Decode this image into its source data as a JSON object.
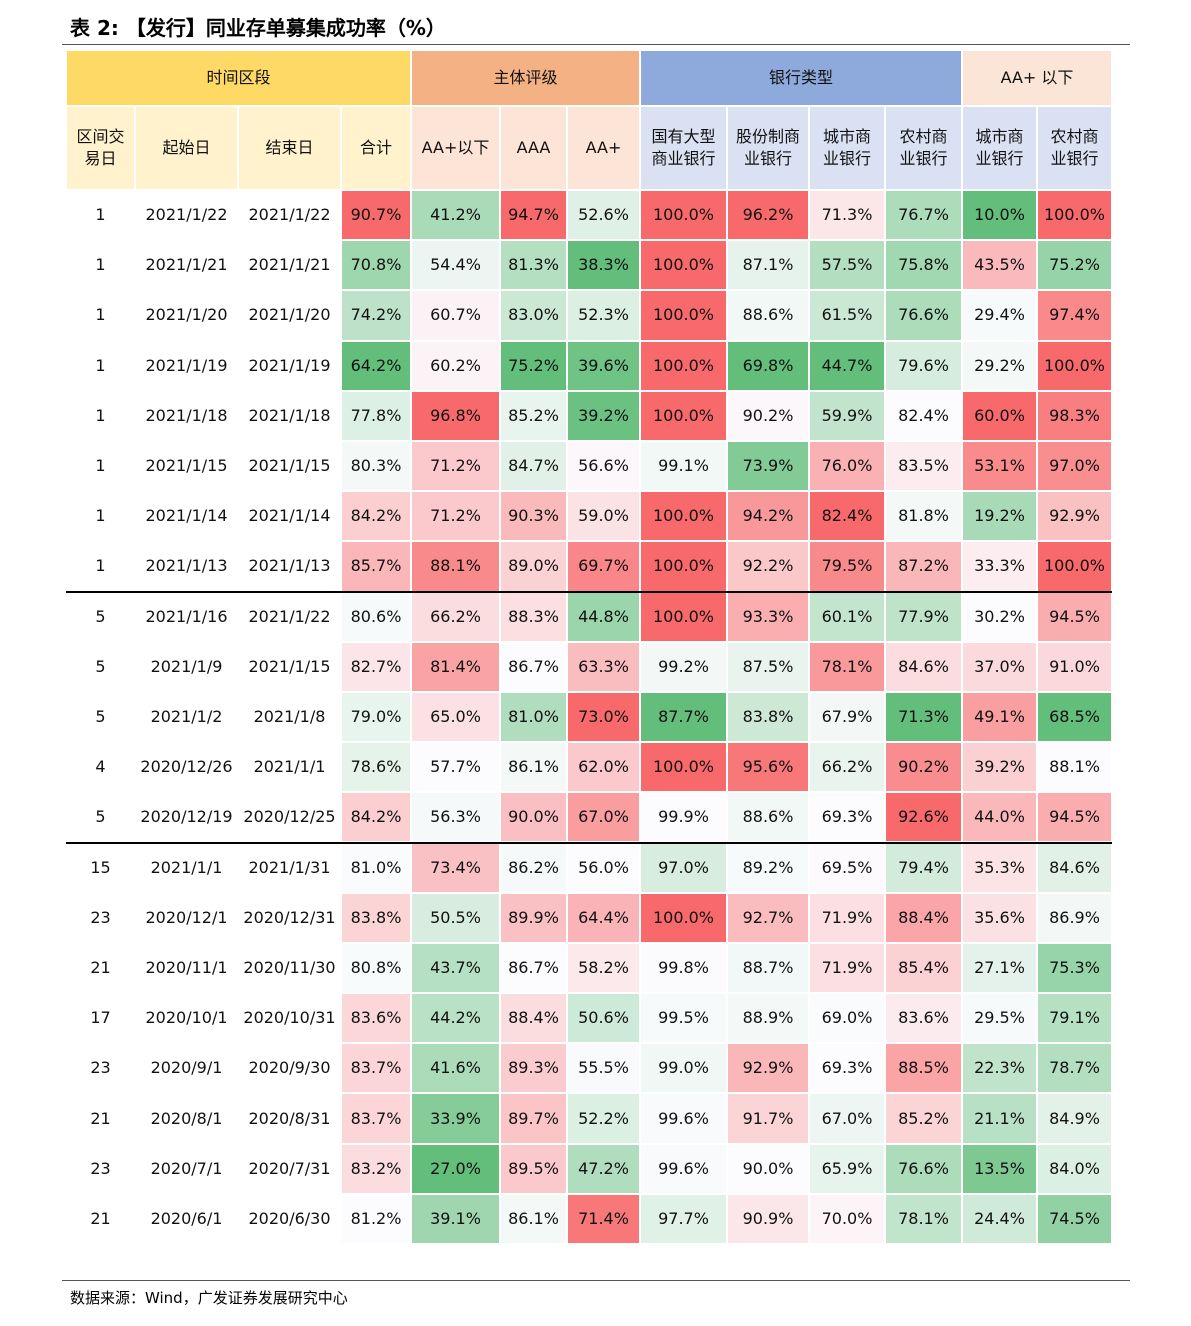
{
  "title": "表 2: 【发行】同业存单募集成功率（%）",
  "table": {
    "group_headers": [
      "时间区段",
      "主体评级",
      "银行类型",
      "AA+ 以下"
    ],
    "headers": [
      "区间交\n易日",
      "起始日",
      "结束日",
      "合计",
      "AA+以下",
      "AAA",
      "AA+",
      "国有大型\n商业银行",
      "股份制商\n业银行",
      "城市商\n业银行",
      "农村商\n业银行",
      "城市商\n业银行",
      "农村商\n业银行"
    ],
    "rows": [
      [
        "1",
        "2021/1/22",
        "2021/1/22",
        "90.7%",
        "41.2%",
        "94.7%",
        "52.6%",
        "100.0%",
        "96.2%",
        "71.3%",
        "76.7%",
        "10.0%",
        "100.0%"
      ],
      [
        "1",
        "2021/1/21",
        "2021/1/21",
        "70.8%",
        "54.4%",
        "81.3%",
        "38.3%",
        "100.0%",
        "87.1%",
        "57.5%",
        "75.8%",
        "43.5%",
        "75.2%"
      ],
      [
        "1",
        "2021/1/20",
        "2021/1/20",
        "74.2%",
        "60.7%",
        "83.0%",
        "52.3%",
        "100.0%",
        "88.6%",
        "61.5%",
        "76.6%",
        "29.4%",
        "97.4%"
      ],
      [
        "1",
        "2021/1/19",
        "2021/1/19",
        "64.2%",
        "60.2%",
        "75.2%",
        "39.6%",
        "100.0%",
        "69.8%",
        "44.7%",
        "79.6%",
        "29.2%",
        "100.0%"
      ],
      [
        "1",
        "2021/1/18",
        "2021/1/18",
        "77.8%",
        "96.8%",
        "85.2%",
        "39.2%",
        "100.0%",
        "90.2%",
        "59.9%",
        "82.4%",
        "60.0%",
        "98.3%"
      ],
      [
        "1",
        "2021/1/15",
        "2021/1/15",
        "80.3%",
        "71.2%",
        "84.7%",
        "56.6%",
        "99.1%",
        "73.9%",
        "76.0%",
        "83.5%",
        "53.1%",
        "97.0%"
      ],
      [
        "1",
        "2021/1/14",
        "2021/1/14",
        "84.2%",
        "71.2%",
        "90.3%",
        "59.0%",
        "100.0%",
        "94.2%",
        "82.4%",
        "81.8%",
        "19.2%",
        "92.9%"
      ],
      [
        "1",
        "2021/1/13",
        "2021/1/13",
        "85.7%",
        "88.1%",
        "89.0%",
        "69.7%",
        "100.0%",
        "92.2%",
        "79.5%",
        "87.2%",
        "33.3%",
        "100.0%"
      ],
      [
        "5",
        "2021/1/16",
        "2021/1/22",
        "80.6%",
        "66.2%",
        "88.3%",
        "44.8%",
        "100.0%",
        "93.3%",
        "60.1%",
        "77.9%",
        "30.2%",
        "94.5%"
      ],
      [
        "5",
        "2021/1/9",
        "2021/1/15",
        "82.7%",
        "81.4%",
        "86.7%",
        "63.3%",
        "99.2%",
        "87.5%",
        "78.1%",
        "84.6%",
        "37.0%",
        "91.0%"
      ],
      [
        "5",
        "2021/1/2",
        "2021/1/8",
        "79.0%",
        "65.0%",
        "81.0%",
        "73.0%",
        "87.7%",
        "83.8%",
        "67.9%",
        "71.3%",
        "49.1%",
        "68.5%"
      ],
      [
        "4",
        "2020/12/26",
        "2021/1/1",
        "78.6%",
        "57.7%",
        "86.1%",
        "62.0%",
        "100.0%",
        "95.6%",
        "66.2%",
        "90.2%",
        "39.2%",
        "88.1%"
      ],
      [
        "5",
        "2020/12/19",
        "2020/12/25",
        "84.2%",
        "56.3%",
        "90.0%",
        "67.0%",
        "99.9%",
        "88.6%",
        "69.3%",
        "92.6%",
        "44.0%",
        "94.5%"
      ],
      [
        "15",
        "2021/1/1",
        "2021/1/31",
        "81.0%",
        "73.4%",
        "86.2%",
        "56.0%",
        "97.0%",
        "89.2%",
        "69.5%",
        "79.4%",
        "35.3%",
        "84.6%"
      ],
      [
        "23",
        "2020/12/1",
        "2020/12/31",
        "83.8%",
        "50.5%",
        "89.9%",
        "64.4%",
        "100.0%",
        "92.7%",
        "71.9%",
        "88.4%",
        "35.6%",
        "86.9%"
      ],
      [
        "21",
        "2020/11/1",
        "2020/11/30",
        "80.8%",
        "43.7%",
        "86.7%",
        "58.2%",
        "99.8%",
        "88.7%",
        "71.9%",
        "85.4%",
        "27.1%",
        "75.3%"
      ],
      [
        "17",
        "2020/10/1",
        "2020/10/31",
        "83.6%",
        "44.2%",
        "88.4%",
        "50.6%",
        "99.5%",
        "88.9%",
        "69.0%",
        "83.6%",
        "29.5%",
        "79.1%"
      ],
      [
        "23",
        "2020/9/1",
        "2020/9/30",
        "83.7%",
        "41.6%",
        "89.3%",
        "55.5%",
        "99.0%",
        "92.9%",
        "69.3%",
        "88.5%",
        "22.3%",
        "78.7%"
      ],
      [
        "21",
        "2020/8/1",
        "2020/8/31",
        "83.7%",
        "33.9%",
        "89.7%",
        "52.2%",
        "99.6%",
        "91.7%",
        "67.0%",
        "85.2%",
        "21.1%",
        "84.9%"
      ],
      [
        "23",
        "2020/7/1",
        "2020/7/31",
        "83.2%",
        "27.0%",
        "89.5%",
        "47.2%",
        "99.6%",
        "90.0%",
        "65.9%",
        "76.6%",
        "13.5%",
        "84.0%"
      ],
      [
        "21",
        "2020/6/1",
        "2020/6/30",
        "81.2%",
        "39.1%",
        "86.1%",
        "71.4%",
        "97.7%",
        "90.9%",
        "70.0%",
        "78.1%",
        "24.4%",
        "74.5%"
      ]
    ]
  },
  "source": "数据来源：Wind，广发证券发展研究中心"
}
